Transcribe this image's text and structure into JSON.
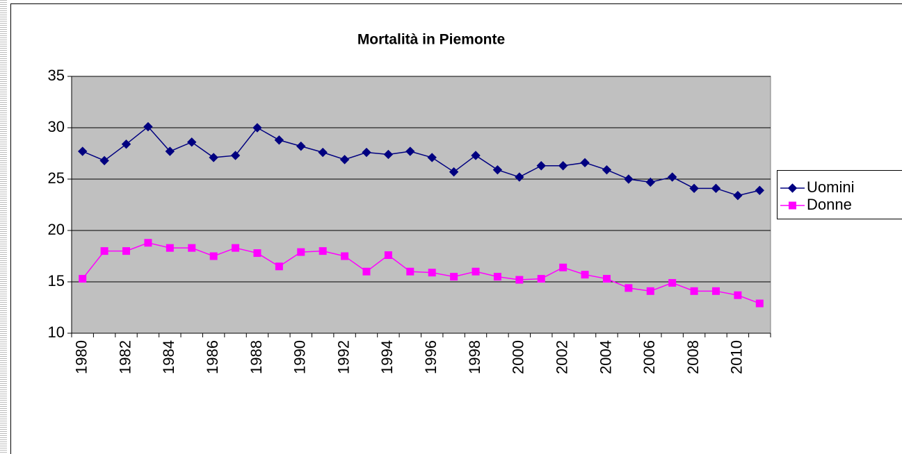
{
  "chart_data": {
    "type": "line",
    "title": "Mortalità in Piemonte",
    "categories": [
      "1980",
      null,
      "1982",
      null,
      "1984",
      null,
      "1986",
      null,
      "1988",
      null,
      "1990",
      null,
      "1992",
      null,
      "1994",
      null,
      "1996",
      null,
      "1998",
      null,
      "2000",
      null,
      "2002",
      null,
      "2004",
      null,
      "2006",
      null,
      "2008",
      null,
      "2010",
      null
    ],
    "series": [
      {
        "name": "Uomini",
        "color": "#000080",
        "marker": "diamond",
        "values": [
          27.7,
          26.8,
          28.4,
          30.1,
          27.7,
          28.6,
          27.1,
          27.3,
          30.0,
          28.8,
          28.2,
          27.6,
          26.9,
          27.6,
          27.4,
          27.7,
          27.1,
          25.7,
          27.3,
          25.9,
          25.2,
          26.3,
          26.3,
          26.6,
          25.9,
          25.0,
          24.7,
          25.2,
          24.1,
          24.1,
          23.4,
          23.9
        ]
      },
      {
        "name": "Donne",
        "color": "#ff00ff",
        "marker": "square",
        "values": [
          15.3,
          18.0,
          18.0,
          18.8,
          18.3,
          18.3,
          17.5,
          18.3,
          17.8,
          16.5,
          17.9,
          18.0,
          17.5,
          16.0,
          17.6,
          16.0,
          15.9,
          15.5,
          16.0,
          15.5,
          15.2,
          15.3,
          16.4,
          15.7,
          15.3,
          14.4,
          14.1,
          14.9,
          14.1,
          14.1,
          13.7,
          12.9
        ]
      }
    ],
    "ylim": [
      10,
      35
    ],
    "yticks": [
      10,
      15,
      20,
      25,
      30,
      35
    ],
    "grid": true,
    "legend": "right"
  }
}
